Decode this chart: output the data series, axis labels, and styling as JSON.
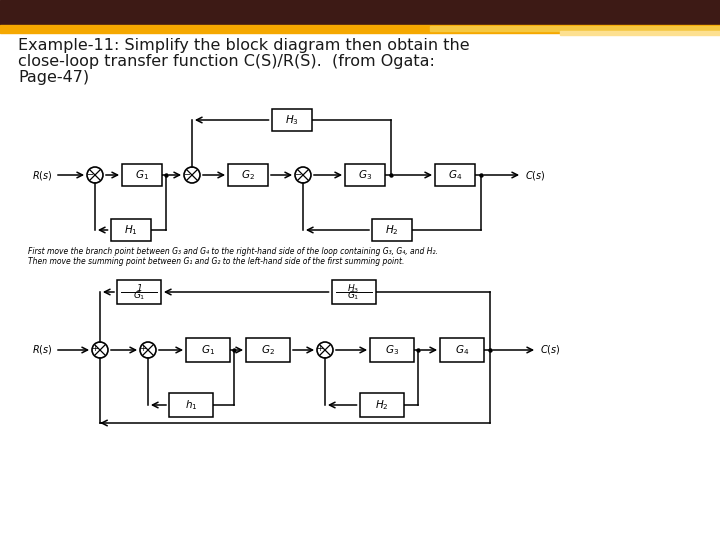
{
  "title_line1": "Example-11: Simplify the block diagram then obtain the",
  "title_line2": "close-loop transfer function C(S)/R(S).  (from Ogata:",
  "title_line3": "Page-47)",
  "bg_color": "#ffffff",
  "header_dark": "#3d1a15",
  "header_gold": "#f5a800",
  "header_gold2": "#f5c842",
  "header_gold3": "#fde090",
  "text_color": "#1a1a1a",
  "note_line1": "First move the branch point between G₃ and G₄ to the right-hand side of the loop containing G₃, G₄, and H₂.",
  "note_line2": "Then move the summing point between G₁ and G₂ to the left-hand side of the first summing point.",
  "diag1": {
    "R_label": "R(s)",
    "C_label": "C(s)",
    "G1": "G₁",
    "G2": "G₂",
    "G3": "G₃",
    "G4": "G₄",
    "H1": "H₁",
    "H2": "H₂",
    "H3": "H₃"
  },
  "diag2": {
    "R_label": "R(s)",
    "C_label": "C(s)",
    "G1": "G₁",
    "G2": "G₂",
    "G3": "G₃",
    "G4": "G₄",
    "H1": "h₁",
    "H2": "H₂",
    "T1": "1/G₁",
    "T2": "H₃/G₁"
  }
}
